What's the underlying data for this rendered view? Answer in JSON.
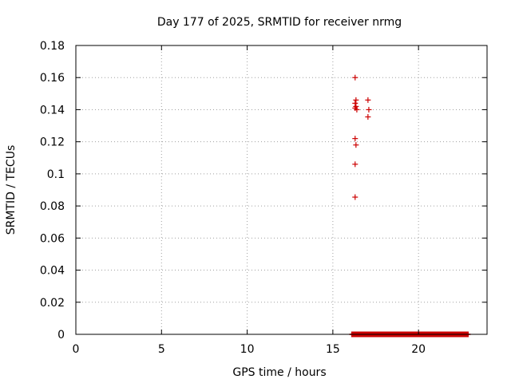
{
  "chart_data": {
    "type": "scatter",
    "title": "Day 177 of 2025, SRMTID for receiver nrmg",
    "xlabel": "GPS time / hours",
    "ylabel": "SRMTID / TECUs",
    "xlim": [
      0,
      24
    ],
    "ylim": [
      0,
      0.18
    ],
    "xticks": [
      0,
      5,
      10,
      15,
      20
    ],
    "xtick_labels": [
      "0",
      "5",
      "10",
      "15",
      "20"
    ],
    "yticks": [
      0,
      0.02,
      0.04,
      0.06,
      0.08,
      0.1,
      0.12,
      0.14,
      0.16,
      0.18
    ],
    "ytick_labels": [
      "0",
      "0.02",
      "0.04",
      "0.06",
      "0.08",
      "0.1",
      "0.12",
      "0.14",
      "0.16",
      "0.18"
    ],
    "grid": true,
    "marker": "plus",
    "color": "#cc0000",
    "series": [
      {
        "points": [
          [
            16.3,
            0.16
          ],
          [
            16.35,
            0.146
          ],
          [
            16.3,
            0.144
          ],
          [
            16.35,
            0.142
          ],
          [
            16.3,
            0.141
          ],
          [
            16.4,
            0.14
          ],
          [
            17.05,
            0.146
          ],
          [
            17.1,
            0.14
          ],
          [
            17.05,
            0.1355
          ],
          [
            16.3,
            0.122
          ],
          [
            16.35,
            0.118
          ],
          [
            16.3,
            0.106
          ],
          [
            16.3,
            0.0855
          ]
        ]
      },
      {
        "x_start": 16.1,
        "x_end": 22.9,
        "x_step": 0.02,
        "y": 0
      }
    ]
  }
}
